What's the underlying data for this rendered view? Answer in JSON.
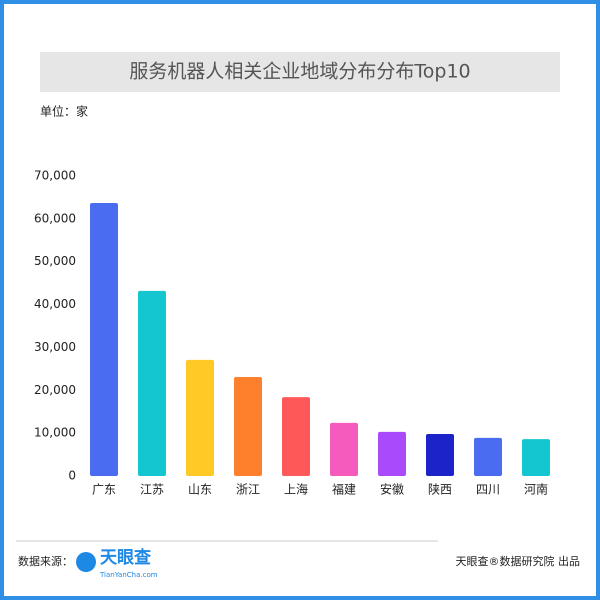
{
  "chart_data": {
    "type": "bar",
    "title": "服务机器人相关企业地域分布分布Top10",
    "unit_label": "单位：家",
    "categories": [
      "广东",
      "江苏",
      "山东",
      "浙江",
      "上海",
      "福建",
      "安徽",
      "陕西",
      "四川",
      "河南"
    ],
    "values": [
      63700,
      43200,
      27100,
      23100,
      18400,
      12400,
      10300,
      9800,
      8900,
      8600
    ],
    "colors": [
      "#4a6cf0",
      "#13c6cf",
      "#ffc926",
      "#fe7f2c",
      "#ff5858",
      "#f45bbd",
      "#a94bfc",
      "#1c24c9",
      "#4a6cf0",
      "#13c6cf"
    ],
    "ylim": [
      0,
      70000
    ],
    "yticks": [
      0,
      {
        "value": 10000,
        "label": "10,000"
      },
      {
        "value": 20000,
        "label": "20,000"
      },
      {
        "value": 30000,
        "label": "30,000"
      },
      {
        "value": 40000,
        "label": "40,000"
      },
      {
        "value": 50000,
        "label": "50,000"
      },
      {
        "value": 60000,
        "label": "60,000"
      },
      {
        "value": 70000,
        "label": "70,000"
      }
    ]
  },
  "footer": {
    "source_label": "数据来源：",
    "logo_text": "天眼查",
    "logo_subtext": "TianYanCha.com",
    "credit": "天眼查®数据研究院 出品"
  }
}
